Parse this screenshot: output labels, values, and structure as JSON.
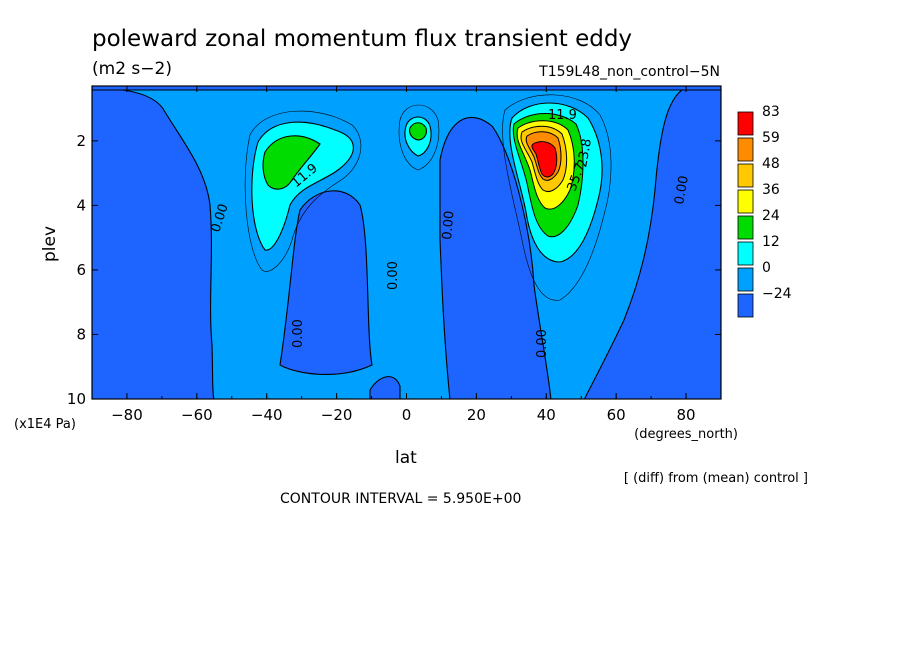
{
  "chart_data": {
    "type": "heatmap",
    "title": "poleward zonal momentum flux transient eddy",
    "units": "(m2 s−2)",
    "run_label": "T159L48_non_control−5N",
    "xlabel": "lat",
    "x_units": "(degrees_north)",
    "ylabel": "plev",
    "y_units": "(x1E4 Pa)",
    "xlim": [
      -90,
      90
    ],
    "ylim": [
      10,
      0.3
    ],
    "x_ticks": [
      -80,
      -60,
      -40,
      -20,
      0,
      20,
      40,
      60,
      80
    ],
    "x_tick_labels": [
      "−80",
      "−60",
      "−40",
      "−20",
      "0",
      "20",
      "40",
      "60",
      "80"
    ],
    "y_ticks": [
      2,
      4,
      6,
      8,
      10
    ],
    "y_tick_labels": [
      "2",
      "4",
      "6",
      "8",
      "10"
    ],
    "note": "[ (diff) from (mean) control ]",
    "contour_interval_text": "CONTOUR INTERVAL = 5.950E+00",
    "contour_interval": 5.95,
    "colorbar": {
      "labels": [
        "83",
        "59",
        "48",
        "36",
        "24",
        "12",
        "0",
        "−24"
      ],
      "colors": [
        "#ff0000",
        "#ff8c00",
        "#ffc800",
        "#ffff00",
        "#00dc00",
        "#00ffff",
        "#00a0ff",
        "#1e64ff"
      ]
    },
    "field_features": [
      {
        "name": "NH maximum",
        "lat": 41,
        "plev": 2.5,
        "value": 83
      },
      {
        "name": "SH maximum",
        "lat": -38,
        "plev": 2.6,
        "value": 30
      },
      {
        "name": "equatorial maximum",
        "lat": 3,
        "plev": 1.5,
        "value": 25
      }
    ],
    "contour_labels": [
      {
        "text": "11.9",
        "lat": 46,
        "plev": 1.1
      },
      {
        "text": "11.9",
        "lat": -30,
        "plev": 3.1
      },
      {
        "text": "23.8",
        "lat": 48,
        "plev": 2.9
      },
      {
        "text": "35.7",
        "lat": 43,
        "plev": 3.2
      },
      {
        "text": "0.00",
        "lat": -52,
        "plev": 4.1
      },
      {
        "text": "0.00",
        "lat": 12,
        "plev": 4.2
      },
      {
        "text": "0.00",
        "lat": -4,
        "plev": 6.0
      },
      {
        "text": "0.00",
        "lat": 80,
        "plev": 3.2
      },
      {
        "text": "0.00",
        "lat": -31,
        "plev": 8.0
      },
      {
        "text": "0.00",
        "lat": 38,
        "plev": 8.0
      }
    ]
  }
}
